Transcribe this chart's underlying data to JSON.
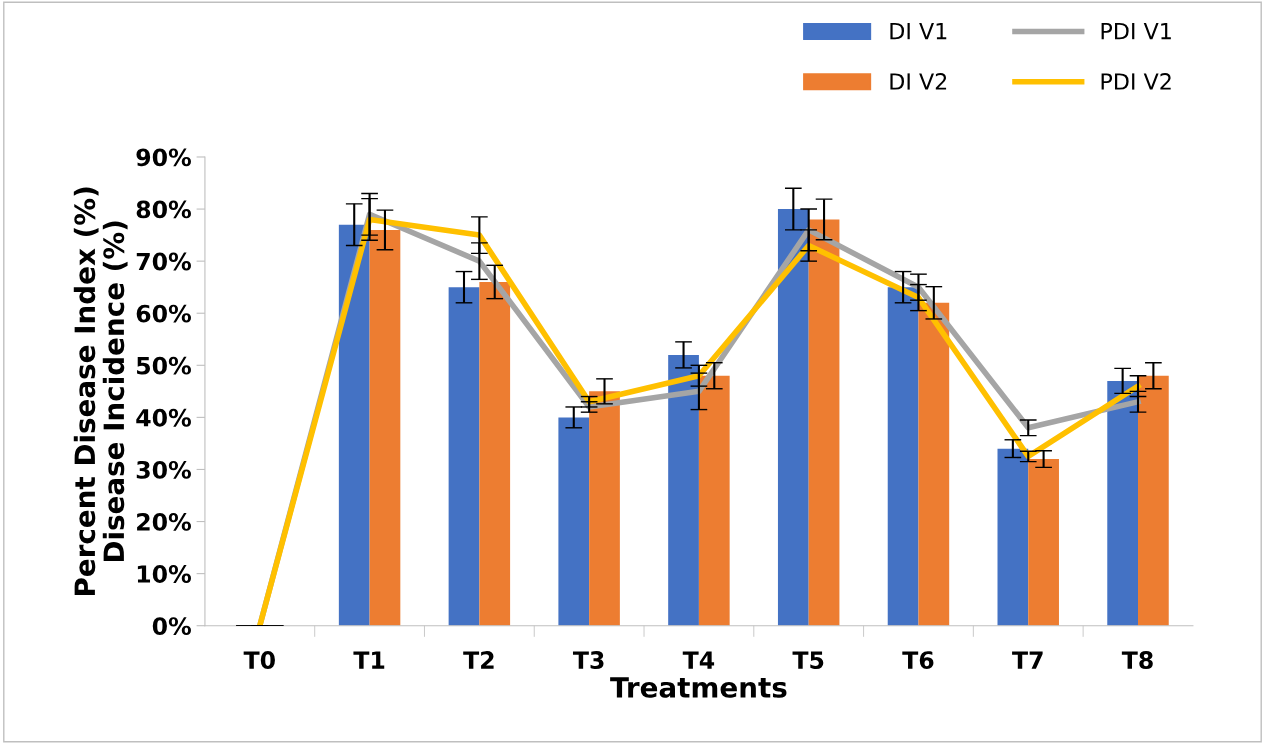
{
  "chart_data": {
    "type": "bar",
    "xlabel": "Treatments",
    "ylabel": "Percent Disease Index (%)\nDisease Incidence (%)",
    "categories": [
      "T0",
      "T1",
      "T2",
      "T3",
      "T4",
      "T5",
      "T6",
      "T7",
      "T8"
    ],
    "series": [
      {
        "name": "DI V1",
        "color": "#4472c4",
        "values": [
          0,
          77,
          65,
          40,
          52,
          80,
          65,
          34,
          47
        ],
        "errors": [
          null,
          4,
          3,
          2,
          2.5,
          4,
          3,
          1.7,
          2.4
        ]
      },
      {
        "name": "DI V2",
        "color": "#ed7d31",
        "values": [
          0,
          76,
          66,
          45,
          48,
          78,
          62,
          32,
          48
        ],
        "errors": [
          null,
          3.8,
          3.2,
          2.4,
          2.5,
          3.9,
          3.1,
          1.6,
          2.5
        ]
      },
      {
        "name": "PDI V1",
        "type": "line",
        "color": "#a5a5a5",
        "values": [
          0,
          79,
          70,
          42,
          45,
          76,
          65,
          38,
          43
        ],
        "errors": [
          null,
          4,
          3.5,
          1,
          3.5,
          4,
          2.5,
          1.5,
          2
        ]
      },
      {
        "name": "PDI V2",
        "type": "line",
        "color": "#ffc000",
        "values": [
          0,
          78,
          75,
          43,
          48,
          73,
          63,
          32.5,
          46
        ],
        "errors": [
          null,
          4,
          3.5,
          1,
          2,
          3,
          2.5,
          1,
          2
        ]
      }
    ],
    "ylim": [
      0,
      90
    ],
    "yticks": [
      {
        "value": 0,
        "label": "0%"
      },
      {
        "value": 10,
        "label": "10%"
      },
      {
        "value": 20,
        "label": "20%"
      },
      {
        "value": 30,
        "label": "30%"
      },
      {
        "value": 40,
        "label": "40%"
      },
      {
        "value": 50,
        "label": "50%"
      },
      {
        "value": 60,
        "label": "60%"
      },
      {
        "value": 70,
        "label": "70%"
      },
      {
        "value": 80,
        "label": "80%"
      },
      {
        "value": 90,
        "label": "90%"
      }
    ],
    "legend": "top right",
    "grid": false,
    "marker": "none"
  }
}
